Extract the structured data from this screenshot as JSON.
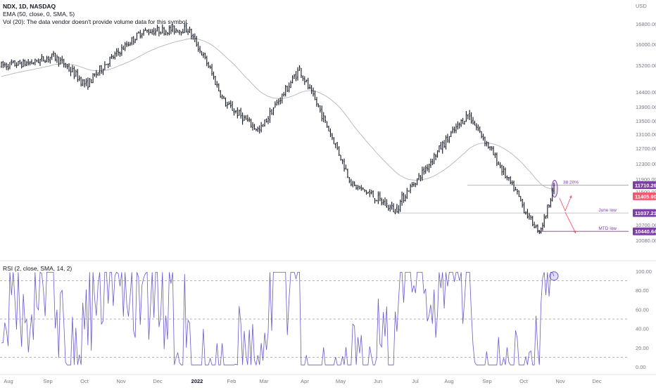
{
  "header": {
    "symbol_line": "NDX, 1D, NASDAQ",
    "ema_line": "EMA (50, close, 0, SMA, 5)",
    "vol_line": "Vol (20): The data vendor doesn't provide volume data for this symbol.",
    "rsi_line": "RSI (2, close, SMA, 14, 2)"
  },
  "price_scale": {
    "currency": "USD",
    "ticks": [
      "16800.00",
      "16000.00",
      "15200.00",
      "14400.00",
      "13900.00",
      "13500.00",
      "13100.00",
      "12700.00",
      "12300.00",
      "11900.00",
      "11500.00",
      "11100.00",
      "10700.00",
      "10080.00"
    ],
    "tags": [
      {
        "label": "11710.26",
        "value": 11710.26,
        "color": "#7b3fa6"
      },
      {
        "label": "11405.90",
        "value": 11405.9,
        "color": "#f05a6e"
      },
      {
        "label": "11037.21",
        "value": 11037.21,
        "color": "#7b3fa6"
      },
      {
        "label": "10440.64",
        "value": 10440.64,
        "color": "#7b3fa6"
      }
    ],
    "annotations": {
      "fib": "38.20%",
      "june_low": "June low",
      "mtd_low": "MTD low"
    }
  },
  "rsi_scale": {
    "ticks": [
      "100.00",
      "80.00",
      "60.00",
      "40.00",
      "20.00",
      "0.00"
    ]
  },
  "time_axis": {
    "labels": [
      "Aug",
      "Sep",
      "Oct",
      "Nov",
      "Dec",
      "2022",
      "Feb",
      "Mar",
      "Apr",
      "May",
      "Jun",
      "Jul",
      "Aug",
      "Sep",
      "Oct",
      "Nov",
      "Dec"
    ],
    "bold_label": "2022"
  },
  "colors": {
    "up": "#131722",
    "down": "#131722",
    "ema": "#b2b5be",
    "rsi": "#6a5acd",
    "level": "#7b3fa6",
    "scenario": "#f05a6e",
    "grid_dash": "#9598a1"
  },
  "chart_data": [
    {
      "type": "ohlc",
      "symbol": "NDX",
      "interval": "1D",
      "y_unit": "USD",
      "ylim": [
        10080,
        16950
      ],
      "x_label_months": [
        "Aug",
        "Sep",
        "Oct",
        "Nov",
        "Dec",
        "2022",
        "Feb",
        "Mar",
        "Apr",
        "May",
        "Jun",
        "Jul",
        "Aug",
        "Sep",
        "Oct",
        "Nov",
        "Dec"
      ],
      "close_path_approx": [
        {
          "x": "2021-07-26",
          "close": 15200
        },
        {
          "x": "2021-08-20",
          "close": 15300
        },
        {
          "x": "2021-09-07",
          "close": 15550
        },
        {
          "x": "2021-10-04",
          "close": 14600
        },
        {
          "x": "2021-11-19",
          "close": 16500
        },
        {
          "x": "2021-12-27",
          "close": 16600
        },
        {
          "x": "2022-01-27",
          "close": 14000
        },
        {
          "x": "2022-02-24",
          "close": 13200
        },
        {
          "x": "2022-03-29",
          "close": 15100
        },
        {
          "x": "2022-05-12",
          "close": 11700
        },
        {
          "x": "2022-06-16",
          "close": 11100
        },
        {
          "x": "2022-08-15",
          "close": 13700
        },
        {
          "x": "2022-10-13",
          "close": 10440
        },
        {
          "x": "2022-10-25",
          "close": 11710
        }
      ],
      "overlays": [
        {
          "name": "EMA (50, close, 0, SMA, 5)"
        },
        {
          "name": "38.20%",
          "value": 11710.26
        },
        {
          "name": "June low",
          "value": 11037.21
        },
        {
          "name": "MTD low",
          "value": 10440.64
        }
      ]
    },
    {
      "type": "line",
      "name": "RSI (2, close, SMA, 14, 2)",
      "ylim": [
        0,
        100
      ],
      "bands": [
        90,
        50,
        10
      ],
      "last_value": 95
    }
  ]
}
